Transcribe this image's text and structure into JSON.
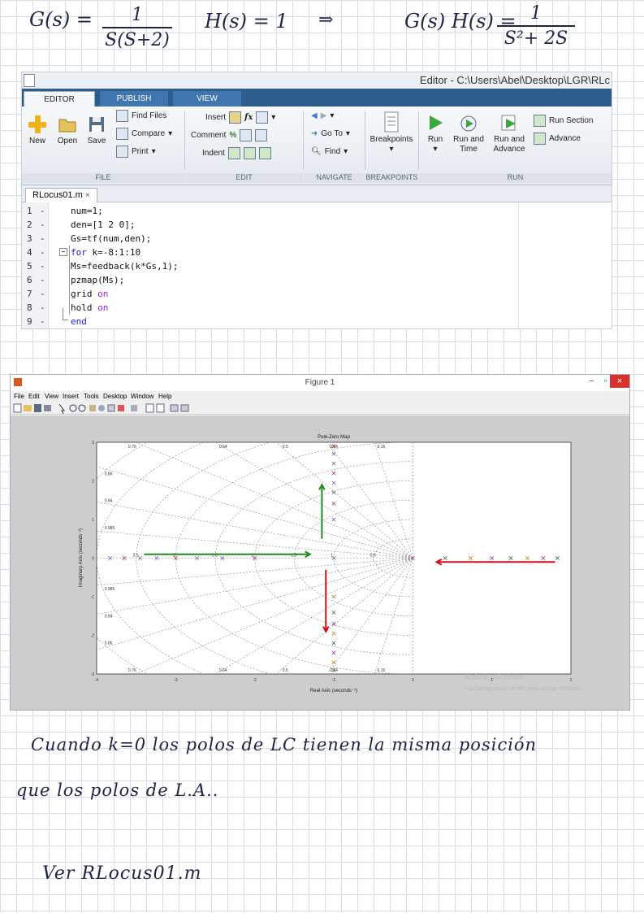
{
  "notes_top": {
    "g_lhs": "G(s) =",
    "g_num": "1",
    "g_den": "S(S+2)",
    "h_eq": "H(s) = 1",
    "arrow": "⇒",
    "gh_lhs": "G(s) H(s) =",
    "gh_num": "1",
    "gh_den": "S²+ 2S"
  },
  "editor": {
    "title": "Editor - C:\\Users\\Abel\\Desktop\\LGR\\RLc",
    "tabs": [
      "EDITOR",
      "PUBLISH",
      "VIEW"
    ],
    "buttons": {
      "new": "New",
      "open": "Open",
      "save": "Save",
      "find_files": "Find Files",
      "compare": "Compare",
      "print": "Print",
      "insert": "Insert",
      "comment": "Comment",
      "indent": "Indent",
      "fx": "fx",
      "goto": "Go To",
      "find": "Find",
      "breakpoints": "Breakpoints",
      "run": "Run",
      "run_time_1": "Run and",
      "run_time_2": "Time",
      "run_adv_1": "Run and",
      "run_adv_2": "Advance",
      "run_section": "Run Section",
      "advance": "Advance"
    },
    "groups": [
      "FILE",
      "EDIT",
      "NAVIGATE",
      "BREAKPOINTS",
      "RUN"
    ],
    "file_tab": "RLocus01.m",
    "lines": [
      {
        "n": "1",
        "code": "num=1;"
      },
      {
        "n": "2",
        "code": "den=[1 2 0];"
      },
      {
        "n": "3",
        "code": "Gs=tf(num,den);"
      },
      {
        "n": "4",
        "code": "k=-8:1:10",
        "kw": "for "
      },
      {
        "n": "5",
        "code": "Ms=feedback(k*Gs,1);"
      },
      {
        "n": "6",
        "code": "pzmap(Ms);"
      },
      {
        "n": "7",
        "code": "grid ",
        "tail": "on"
      },
      {
        "n": "8",
        "code": "hold ",
        "tail": "on"
      },
      {
        "n": "9",
        "code": "",
        "kw": "end"
      }
    ]
  },
  "figure": {
    "title": "Figure 1",
    "menu": [
      "File",
      "Edit",
      "View",
      "Insert",
      "Tools",
      "Desktop",
      "Window",
      "Help"
    ],
    "activation_1": "Activar Windows",
    "activation_2": "Ir a Configuración de PC para activar Windows.",
    "colors": {
      "green": "#1f8c1f",
      "red": "#d01010"
    }
  },
  "chart_data": {
    "type": "scatter",
    "title": "Pole-Zero Map",
    "xlabel": "Real Axis (seconds⁻¹)",
    "ylabel": "Imaginary Axis (seconds⁻¹)",
    "xlim": [
      -4,
      2
    ],
    "ylim": [
      -3,
      3
    ],
    "grid": true,
    "x_ticks": [
      "-4",
      "-3",
      "-2",
      "-1",
      "0",
      "1",
      "2"
    ],
    "y_ticks": [
      "-3",
      "-2",
      "-1",
      "0",
      "1",
      "2",
      "3"
    ],
    "damping_labels": [
      "0.76",
      "0.64",
      "0.5",
      "0.34",
      "0.16",
      "0.86",
      "0.94",
      "0.985"
    ],
    "freq_labels": [
      "3.5",
      "3",
      "2.5",
      "2",
      "1.5",
      "1",
      "0.5"
    ],
    "poles": [
      {
        "x": -1,
        "y": 2.9
      },
      {
        "x": -1,
        "y": -2.9
      },
      {
        "x": -1,
        "y": 2.7
      },
      {
        "x": -1,
        "y": -2.7
      },
      {
        "x": -1,
        "y": 2.45
      },
      {
        "x": -1,
        "y": -2.45
      },
      {
        "x": -1,
        "y": 2.2
      },
      {
        "x": -1,
        "y": -2.2
      },
      {
        "x": -1,
        "y": 1.95
      },
      {
        "x": -1,
        "y": -1.95
      },
      {
        "x": -1,
        "y": 1.7
      },
      {
        "x": -1,
        "y": -1.7
      },
      {
        "x": -1,
        "y": 1.41
      },
      {
        "x": -1,
        "y": -1.41
      },
      {
        "x": -1,
        "y": 1.0
      },
      {
        "x": -1,
        "y": -1.0
      },
      {
        "x": -1,
        "y": 0
      },
      {
        "x": -2,
        "y": 0
      },
      {
        "x": 0,
        "y": 0
      },
      {
        "x": 0.41,
        "y": 0
      },
      {
        "x": -2.41,
        "y": 0
      },
      {
        "x": 0.73,
        "y": 0
      },
      {
        "x": -2.73,
        "y": 0
      },
      {
        "x": 1.0,
        "y": 0
      },
      {
        "x": -3.0,
        "y": 0
      },
      {
        "x": 1.24,
        "y": 0
      },
      {
        "x": -3.24,
        "y": 0
      },
      {
        "x": 1.45,
        "y": 0
      },
      {
        "x": -3.45,
        "y": 0
      },
      {
        "x": 1.65,
        "y": 0
      },
      {
        "x": -3.65,
        "y": 0
      },
      {
        "x": 1.83,
        "y": 0
      },
      {
        "x": -3.83,
        "y": 0
      }
    ],
    "annotations": [
      {
        "color": "green",
        "from": [
          -3.4,
          0.1
        ],
        "to": [
          -1.3,
          0.1
        ]
      },
      {
        "color": "green",
        "from": [
          -1.15,
          0.5
        ],
        "to": [
          -1.15,
          1.9
        ]
      },
      {
        "color": "red",
        "from": [
          1.8,
          -0.1
        ],
        "to": [
          0.3,
          -0.1
        ]
      },
      {
        "color": "red",
        "from": [
          -1.1,
          -0.3
        ],
        "to": [
          -1.1,
          -1.9
        ]
      }
    ]
  },
  "notes_bottom": {
    "line1": "Cuando k=0 los polos de LC tienen la misma posición",
    "line2": "que los polos de L.A..",
    "line3": "Ver  RLocus01.m"
  }
}
